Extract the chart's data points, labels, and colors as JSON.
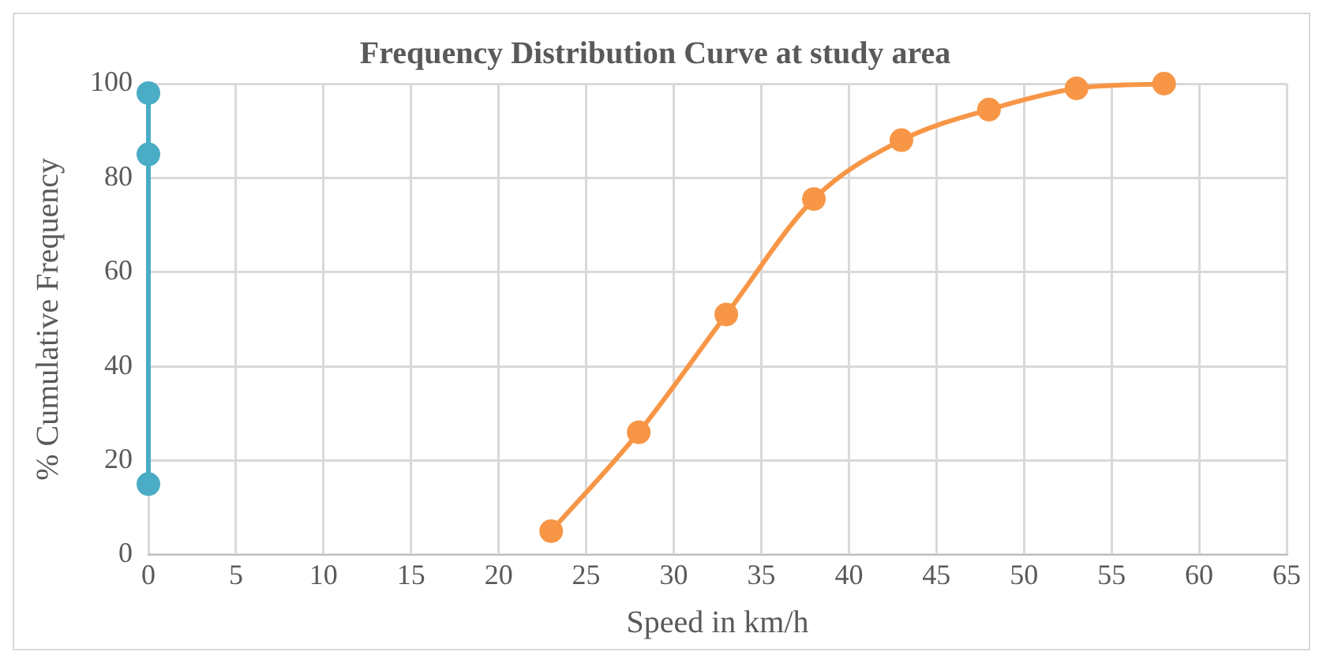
{
  "chart_data": {
    "type": "line",
    "title": "Frequency Distribution Curve at study area",
    "xlabel": "Speed in km/h",
    "ylabel": "% Cumulative Frequency",
    "series": [
      {
        "color": "#4bacc6",
        "x": [
          0,
          0,
          0
        ],
        "values": [
          15,
          85,
          98
        ]
      },
      {
        "color": "#f79646",
        "x": [
          23,
          28,
          33,
          38,
          43,
          48,
          53,
          58
        ],
        "values": [
          5,
          26,
          51,
          75.5,
          88,
          94.5,
          99,
          100
        ]
      }
    ],
    "xlim": [
      0,
      65
    ],
    "xticks": [
      0,
      5,
      10,
      15,
      20,
      25,
      30,
      35,
      40,
      45,
      50,
      55,
      60,
      65
    ],
    "ylim": [
      0,
      100
    ],
    "yticks": [
      0,
      20,
      40,
      60,
      80,
      100
    ],
    "grid": true,
    "legend": false,
    "marker": "circle",
    "line_style": "solid"
  }
}
